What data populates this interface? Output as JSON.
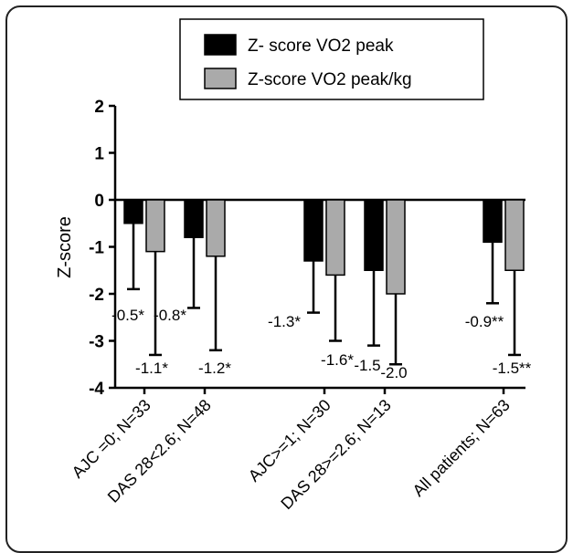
{
  "chart_data": {
    "type": "bar",
    "title": "",
    "xlabel": "",
    "ylabel": "Z-score",
    "ylim": [
      -4,
      2
    ],
    "yticks": [
      "2",
      "1",
      "0",
      "-1",
      "-2",
      "-3",
      "-4"
    ],
    "categories": [
      "AJC =0; N=33",
      "DAS 28<2.6; N=48",
      "AJC>=1; N=30",
      "DAS 28>=2.6; N=13",
      "All patients; N=63"
    ],
    "series": [
      {
        "name": "Z- score VO2 peak",
        "color": "#000000",
        "values": [
          -0.5,
          -0.8,
          -1.3,
          -1.5,
          -0.9
        ],
        "error_low": [
          -1.9,
          -2.3,
          -2.4,
          -3.1,
          -2.2
        ],
        "labels": [
          "-0.5*",
          "-0.8*",
          "-1.3*",
          "-1.5",
          "-0.9**"
        ]
      },
      {
        "name": "Z-score VO2 peak/kg",
        "color": "#aaaaaa",
        "values": [
          -1.1,
          -1.2,
          -1.6,
          -2.0,
          -1.5
        ],
        "error_low": [
          -3.3,
          -3.2,
          -3.0,
          -3.5,
          -3.3
        ],
        "labels": [
          "-1.1*",
          "-1.2*",
          "-1.6*",
          "-2.0",
          "-1.5**"
        ]
      }
    ],
    "grid": false,
    "legend_position": "top"
  }
}
